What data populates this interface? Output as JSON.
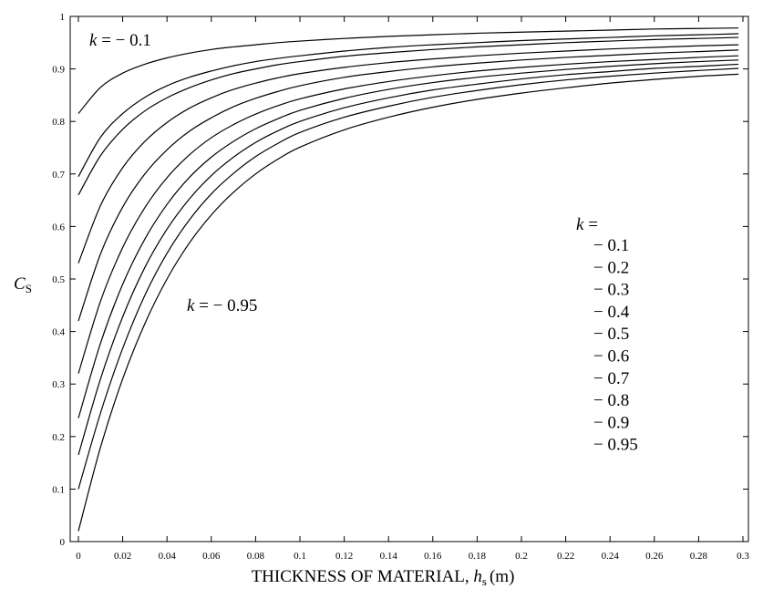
{
  "chart_data": {
    "type": "line",
    "title": "",
    "xlabel": "THICKNESS OF MATERIAL, hs (m)",
    "xlabel_parts": {
      "prefix": "THICKNESS OF MATERIAL, ",
      "var": "h",
      "sub": "s",
      "unit": "(m)"
    },
    "ylabel": "CS",
    "ylabel_parts": {
      "var": "C",
      "sub": "S"
    },
    "xlim": [
      0,
      0.3
    ],
    "ylim": [
      0,
      1
    ],
    "x_ticks": [
      0,
      0.02,
      0.04,
      0.06,
      0.08,
      0.1,
      0.12,
      0.14,
      0.16,
      0.18,
      0.2,
      0.22,
      0.24,
      0.26,
      0.28,
      0.3
    ],
    "x_tick_labels": [
      "0",
      "0.02",
      "0.04",
      "0.06",
      "0.08",
      "0.1",
      "0.12",
      "0.14",
      "0.16",
      "0.18",
      "0.2",
      "0.22",
      "0.24",
      "0.26",
      "0.28",
      "0.3"
    ],
    "y_ticks": [
      0,
      0.1,
      0.2,
      0.3,
      0.4,
      0.5,
      0.6,
      0.7,
      0.8,
      0.9,
      1
    ],
    "y_tick_labels": [
      "0",
      "0.1",
      "0.2",
      "0.3",
      "0.4",
      "0.5",
      "0.6",
      "0.7",
      "0.8",
      "0.9",
      "1"
    ],
    "grid": false,
    "x": [
      0,
      0.01,
      0.02,
      0.03,
      0.04,
      0.05,
      0.06,
      0.07,
      0.08,
      0.09,
      0.1,
      0.12,
      0.14,
      0.16,
      0.18,
      0.2,
      0.22,
      0.24,
      0.26,
      0.28,
      0.298
    ],
    "series": [
      {
        "k": "-0.1",
        "values": [
          0.815,
          0.865,
          0.892,
          0.909,
          0.921,
          0.93,
          0.937,
          0.942,
          0.946,
          0.95,
          0.953,
          0.958,
          0.962,
          0.965,
          0.968,
          0.97,
          0.972,
          0.974,
          0.976,
          0.977,
          0.978
        ]
      },
      {
        "k": "-0.2",
        "values": [
          0.695,
          0.77,
          0.815,
          0.846,
          0.868,
          0.884,
          0.896,
          0.906,
          0.914,
          0.92,
          0.925,
          0.934,
          0.941,
          0.946,
          0.95,
          0.954,
          0.957,
          0.96,
          0.963,
          0.965,
          0.967
        ]
      },
      {
        "k": "-0.3",
        "values": [
          0.66,
          0.735,
          0.785,
          0.82,
          0.845,
          0.864,
          0.879,
          0.891,
          0.9,
          0.908,
          0.914,
          0.924,
          0.931,
          0.937,
          0.942,
          0.946,
          0.95,
          0.953,
          0.956,
          0.958,
          0.96
        ]
      },
      {
        "k": "-0.4",
        "values": [
          0.53,
          0.64,
          0.712,
          0.762,
          0.798,
          0.825,
          0.845,
          0.861,
          0.873,
          0.883,
          0.891,
          0.903,
          0.912,
          0.919,
          0.925,
          0.93,
          0.934,
          0.938,
          0.941,
          0.944,
          0.946
        ]
      },
      {
        "k": "-0.5",
        "values": [
          0.42,
          0.548,
          0.637,
          0.7,
          0.746,
          0.781,
          0.807,
          0.828,
          0.844,
          0.857,
          0.868,
          0.884,
          0.895,
          0.904,
          0.911,
          0.917,
          0.922,
          0.926,
          0.93,
          0.933,
          0.936
        ]
      },
      {
        "k": "-0.6",
        "values": [
          0.32,
          0.458,
          0.56,
          0.636,
          0.693,
          0.736,
          0.769,
          0.794,
          0.814,
          0.83,
          0.843,
          0.862,
          0.876,
          0.887,
          0.896,
          0.903,
          0.909,
          0.914,
          0.918,
          0.922,
          0.925
        ]
      },
      {
        "k": "-0.7",
        "values": [
          0.235,
          0.378,
          0.49,
          0.576,
          0.642,
          0.693,
          0.732,
          0.762,
          0.786,
          0.805,
          0.821,
          0.844,
          0.861,
          0.874,
          0.884,
          0.892,
          0.899,
          0.905,
          0.91,
          0.914,
          0.917
        ]
      },
      {
        "k": "-0.8",
        "values": [
          0.165,
          0.31,
          0.428,
          0.522,
          0.595,
          0.652,
          0.697,
          0.732,
          0.76,
          0.782,
          0.8,
          0.826,
          0.845,
          0.86,
          0.871,
          0.881,
          0.889,
          0.895,
          0.901,
          0.905,
          0.909
        ]
      },
      {
        "k": "-0.9",
        "values": [
          0.1,
          0.245,
          0.368,
          0.469,
          0.549,
          0.612,
          0.662,
          0.701,
          0.733,
          0.758,
          0.779,
          0.808,
          0.829,
          0.846,
          0.859,
          0.87,
          0.879,
          0.886,
          0.892,
          0.897,
          0.901
        ]
      },
      {
        "k": "-0.95",
        "values": [
          0.02,
          0.18,
          0.31,
          0.415,
          0.5,
          0.568,
          0.622,
          0.665,
          0.7,
          0.728,
          0.751,
          0.784,
          0.808,
          0.827,
          0.842,
          0.854,
          0.864,
          0.873,
          0.88,
          0.886,
          0.89
        ]
      }
    ],
    "annotations": [
      {
        "text_var": "k",
        "text_rest": " = − 0.1"
      },
      {
        "text_var": "k",
        "text_rest": " = − 0.95"
      }
    ],
    "legend": {
      "title_var": "k",
      "title_rest": " =",
      "entries": [
        "− 0.1",
        "− 0.2",
        "− 0.3",
        "− 0.4",
        "− 0.5",
        "− 0.6",
        "− 0.7",
        "− 0.8",
        "− 0.9",
        "− 0.95"
      ],
      "placement": "center-right"
    }
  }
}
